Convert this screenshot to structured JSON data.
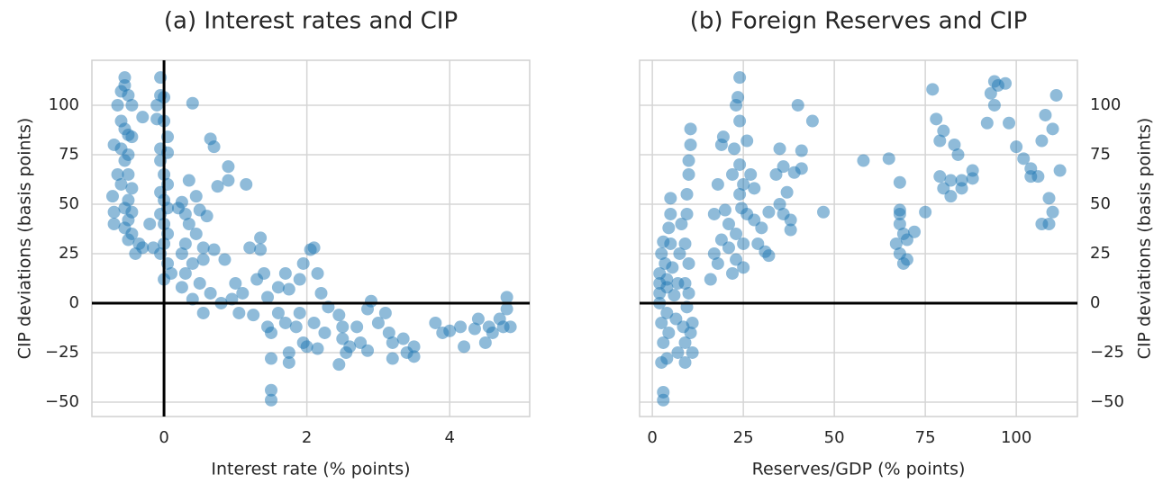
{
  "chart_data": [
    {
      "type": "scatter",
      "title": "(a) Interest rates and CIP",
      "xlabel": "Interest rate (% points)",
      "ylabel": "CIP deviations (basis points)",
      "ylabel_side": "left",
      "color": "#1f77b4",
      "grid": true,
      "xlim": [
        -1.01,
        5.12
      ],
      "ylim": [
        -57.3,
        122.7
      ],
      "xticks": [
        0,
        2,
        4
      ],
      "yticks": [
        {
          "value": -50,
          "label": "−50"
        },
        {
          "value": -25,
          "label": "−25"
        },
        0,
        25,
        50,
        75,
        100
      ],
      "hlines": [
        0
      ],
      "vlines": [
        0
      ],
      "x": [
        -0.55,
        -0.55,
        -0.6,
        -0.5,
        -0.65,
        -0.45,
        -0.6,
        -0.3,
        -0.55,
        -0.5,
        -0.45,
        -0.7,
        -0.6,
        -0.5,
        -0.55,
        -0.65,
        -0.5,
        -0.6,
        -0.45,
        -0.72,
        -0.5,
        -0.55,
        -0.45,
        -0.7,
        -0.7,
        -0.5,
        -0.55,
        -0.45,
        -0.5,
        -0.35,
        -0.3,
        -0.4,
        -0.2,
        -0.15,
        -0.05,
        -0.05,
        0,
        -0.1,
        -0.1,
        0,
        0.05,
        -0.05,
        0.05,
        -0.05,
        0,
        0.05,
        -0.05,
        0,
        0.05,
        -0.05,
        0,
        0.05,
        0,
        -0.05,
        0.05,
        0.1,
        0,
        0.4,
        0.65,
        0.7,
        0.9,
        0.9,
        0.75,
        1.15,
        0.35,
        0.45,
        0.25,
        0.2,
        0.3,
        0.5,
        0.6,
        0.35,
        0.45,
        0.3,
        0.55,
        0.25,
        0.4,
        0.7,
        0.55,
        0.85,
        0.3,
        0.5,
        0.65,
        0.25,
        0.4,
        0.55,
        0.8,
        1.0,
        1.1,
        0.95,
        1.2,
        1.35,
        1.35,
        1.4,
        1.3,
        1.05,
        1.25,
        1.45,
        1.6,
        1.7,
        1.9,
        1.75,
        1.5,
        1.5,
        1.5,
        1.45,
        1.5,
        1.6,
        1.7,
        1.75,
        1.75,
        1.9,
        1.85,
        1.95,
        2.0,
        2.1,
        2.05,
        2.1,
        1.95,
        2.15,
        2.2,
        2.3,
        2.25,
        2.15,
        2.45,
        2.5,
        2.5,
        2.55,
        2.45,
        2.6,
        2.7,
        2.75,
        2.85,
        2.9,
        2.85,
        3.0,
        3.1,
        3.15,
        3.2,
        3.2,
        3.35,
        3.4,
        3.5,
        3.5,
        3.8,
        3.9,
        4.0,
        4.15,
        4.2,
        4.35,
        4.4,
        4.5,
        4.55,
        4.6,
        4.7,
        4.75,
        4.8,
        4.8,
        4.85
      ],
      "values": [
        114,
        110,
        107,
        105,
        100,
        100,
        92,
        94,
        88,
        85,
        84,
        80,
        78,
        75,
        72,
        65,
        65,
        60,
        58,
        54,
        52,
        48,
        46,
        46,
        40,
        42,
        38,
        35,
        32,
        30,
        28,
        25,
        40,
        28,
        114,
        105,
        104,
        100,
        93,
        92,
        84,
        78,
        76,
        72,
        65,
        60,
        56,
        52,
        48,
        45,
        40,
        35,
        30,
        25,
        20,
        15,
        12,
        101,
        83,
        79,
        69,
        62,
        59,
        60,
        62,
        54,
        51,
        48,
        45,
        47,
        44,
        40,
        35,
        30,
        28,
        25,
        20,
        27,
        22,
        22,
        15,
        10,
        5,
        8,
        2,
        -5,
        0,
        10,
        5,
        2,
        28,
        33,
        27,
        15,
        12,
        -5,
        -6,
        3,
        8,
        15,
        12,
        7,
        -28,
        -44,
        -49,
        -12,
        -15,
        -5,
        -10,
        -25,
        -30,
        -5,
        -12,
        -20,
        -22,
        -10,
        27,
        28,
        20,
        15,
        5,
        -2,
        -15,
        -23,
        -6,
        -12,
        -18,
        -25,
        -31,
        -22,
        -12,
        -20,
        -24,
        1,
        -3,
        -10,
        -5,
        -15,
        -28,
        -20,
        -18,
        -25,
        -22,
        -27,
        -10,
        -15,
        -14,
        -12,
        -22,
        -13,
        -8,
        -20,
        -12,
        -15,
        -8,
        -12,
        -3,
        3,
        -12
      ]
    },
    {
      "type": "scatter",
      "title": "(b) Foreign Reserves and CIP",
      "xlabel": "Reserves/GDP (% points)",
      "ylabel": "CIP deviations (basis points)",
      "ylabel_side": "right",
      "color": "#1f77b4",
      "grid": true,
      "xlim": [
        -3.5,
        116.8
      ],
      "ylim": [
        -57.3,
        122.7
      ],
      "xticks": [
        0,
        25,
        50,
        75,
        100
      ],
      "yticks": [
        {
          "value": -50,
          "label": "−50"
        },
        {
          "value": -25,
          "label": "−25"
        },
        0,
        25,
        50,
        75,
        100
      ],
      "hlines": [
        0
      ],
      "x": [
        2,
        2,
        2,
        2.5,
        3,
        2.5,
        3,
        3,
        2,
        2.5,
        3,
        3.5,
        4,
        4,
        4.5,
        4,
        4,
        5,
        5,
        4.5,
        5,
        5.5,
        6,
        6.5,
        7,
        7,
        7.5,
        8,
        8.5,
        9,
        9,
        9.5,
        9,
        9,
        9.5,
        9.5,
        10,
        10,
        10.5,
        10.5,
        10,
        11,
        10.5,
        11,
        10,
        16,
        17,
        17,
        18,
        19,
        19.5,
        19,
        18,
        20,
        21,
        21,
        22,
        22,
        22.5,
        23,
        23.5,
        24,
        24,
        24,
        24,
        23,
        23,
        24.5,
        25,
        25,
        25,
        26,
        26,
        27,
        28,
        28,
        29,
        30,
        31,
        32,
        32,
        34,
        35,
        35,
        36,
        36,
        37,
        38,
        38,
        39,
        40,
        41,
        41,
        44,
        47,
        58,
        65,
        67,
        68,
        68,
        68,
        68,
        68,
        69,
        69,
        70,
        70,
        72,
        75,
        77,
        78,
        79,
        79,
        80,
        80,
        82,
        82,
        83,
        84,
        85,
        85,
        88,
        88,
        92,
        93,
        94,
        95,
        94,
        97,
        98,
        100,
        102,
        104,
        104,
        106,
        107,
        108,
        107,
        109,
        109,
        110,
        110,
        111,
        112
      ],
      "values": [
        10,
        5,
        0,
        -10,
        -20,
        -30,
        -45,
        -49,
        15,
        25,
        31,
        20,
        8,
        -5,
        -15,
        -28,
        12,
        45,
        53,
        38,
        30,
        18,
        4,
        -8,
        -25,
        10,
        25,
        40,
        -12,
        -20,
        -30,
        -2,
        10,
        30,
        45,
        55,
        65,
        72,
        80,
        88,
        20,
        -10,
        -15,
        -25,
        5,
        12,
        25,
        45,
        60,
        80,
        84,
        32,
        20,
        47,
        40,
        28,
        15,
        65,
        78,
        100,
        104,
        114,
        92,
        70,
        55,
        35,
        22,
        48,
        60,
        30,
        18,
        45,
        82,
        65,
        58,
        42,
        30,
        38,
        26,
        46,
        24,
        65,
        78,
        50,
        45,
        69,
        56,
        42,
        37,
        66,
        100,
        77,
        68,
        92,
        46,
        72,
        73,
        30,
        61,
        25,
        45,
        47,
        40,
        20,
        35,
        22,
        32,
        36,
        46,
        108,
        93,
        82,
        64,
        87,
        58,
        62,
        54,
        80,
        75,
        58,
        62,
        63,
        67,
        91,
        106,
        112,
        110,
        100,
        111,
        91,
        79,
        73,
        68,
        64,
        64,
        82,
        95,
        40,
        40,
        53,
        88,
        46,
        105,
        67
      ]
    }
  ]
}
